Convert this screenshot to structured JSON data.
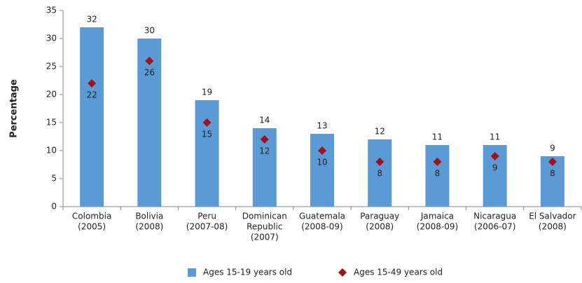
{
  "chart_data": {
    "type": "bar",
    "y_label": "Percentage",
    "categories": [
      [
        "Colombia",
        "(2005)"
      ],
      [
        "Bolivia",
        "(2008)"
      ],
      [
        "Peru",
        "(2007-08)"
      ],
      [
        "Dominican",
        "Republic",
        "(2007)"
      ],
      [
        "Guatemala",
        "(2008-09)"
      ],
      [
        "Paraguay",
        "(2008)"
      ],
      [
        "Jamaica",
        "(2008-09)"
      ],
      [
        "Nicaragua",
        "(2006-07)"
      ],
      [
        "El Salvador",
        "(2008)"
      ]
    ],
    "series": [
      {
        "name": "Ages 15-19 years old",
        "color": "#5b9bd5",
        "values": [
          32,
          30,
          19,
          14,
          13,
          12,
          11,
          11,
          9
        ]
      },
      {
        "name": "Ages 15-49 years old",
        "color": "#a50f15",
        "marker": "diamond",
        "values": [
          22,
          26,
          15,
          12,
          10,
          8,
          8,
          9,
          8
        ]
      }
    ],
    "ylim": [
      0,
      35
    ],
    "yticks": [
      0,
      5,
      10,
      15,
      20,
      25,
      30,
      35
    ]
  }
}
